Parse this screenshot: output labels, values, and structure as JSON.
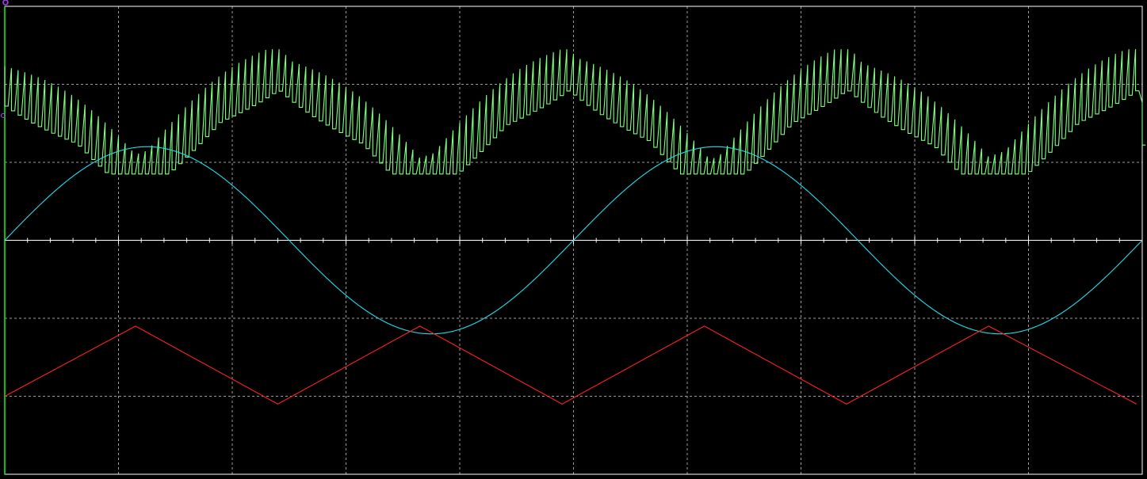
{
  "chart_data": {
    "type": "line",
    "grid": true,
    "x_divisions": 10,
    "y_divisions": 6,
    "x": {
      "min": 0,
      "max": 10
    },
    "y": {
      "min": -3,
      "max": 3
    },
    "colors": {
      "background": "#000000",
      "grid": "#d0d0d0",
      "center_axis": "#ffffff",
      "border": "#ffffff",
      "left_edge": "#00ff00",
      "marker": "#b040ff"
    },
    "series": [
      {
        "key": "green-pwm",
        "color": "#80ff80",
        "shape": "sampled-triangle-envelope",
        "x": [
          0,
          1.15,
          2.4,
          3.65,
          4.95,
          6.2,
          7.4,
          8.65,
          9.95,
          10
        ],
        "y": [
          2.1,
          0.9,
          2.3,
          0.85,
          2.3,
          0.85,
          2.3,
          0.85,
          2.3,
          1.6
        ],
        "offset_amplitude": 0.38,
        "pulses": 170
      },
      {
        "key": "cyan-sine",
        "color": "#22ddee",
        "shape": "sine",
        "amplitude": 1.2,
        "period": 5,
        "phase_start": 0.0,
        "baseline": 0.0
      },
      {
        "key": "red-triangle",
        "color": "#ff2020",
        "shape": "points",
        "x": [
          0,
          1.15,
          2.4,
          3.65,
          4.9,
          6.15,
          7.4,
          8.65,
          9.95
        ],
        "y": [
          -2.0,
          -1.1,
          -2.1,
          -1.1,
          -2.1,
          -1.1,
          -2.1,
          -1.1,
          -2.1
        ]
      }
    ]
  }
}
